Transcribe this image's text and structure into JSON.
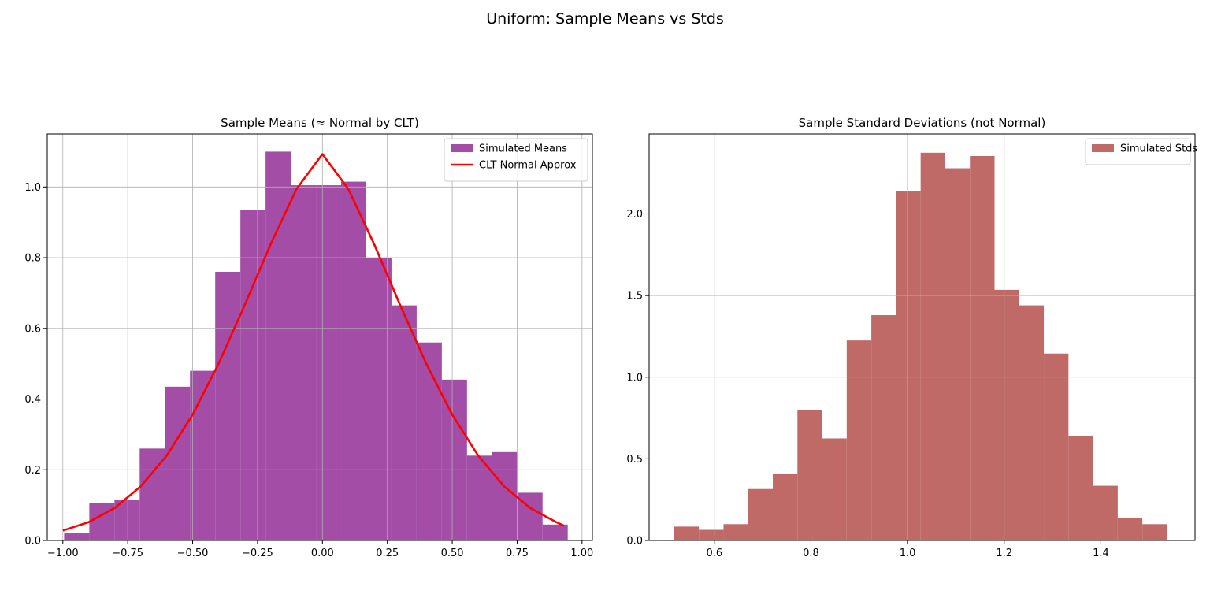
{
  "figure_title": "Uniform: Sample Means vs Stds",
  "chart_data": [
    {
      "type": "bar",
      "title": "Sample Means (≈ Normal by CLT)",
      "xlabel": "",
      "ylabel": "",
      "xlim": [
        -1.06,
        1.04
      ],
      "ylim": [
        0,
        1.15
      ],
      "xticks": [
        -1.0,
        -0.75,
        -0.5,
        -0.25,
        0.0,
        0.25,
        0.5,
        0.75,
        1.0
      ],
      "xtick_labels": [
        "−1.00",
        "−0.75",
        "−0.50",
        "−0.25",
        "0.00",
        "0.25",
        "0.50",
        "0.75",
        "1.00"
      ],
      "yticks": [
        0.0,
        0.2,
        0.4,
        0.6,
        0.8,
        1.0
      ],
      "ytick_labels": [
        "0.0",
        "0.2",
        "0.4",
        "0.6",
        "0.8",
        "1.0"
      ],
      "grid": true,
      "legend_position": "top-right",
      "series": [
        {
          "name": "Simulated Means",
          "kind": "histogram",
          "color": "#a34da6",
          "bin_edges": [
            -0.995,
            -0.898,
            -0.801,
            -0.704,
            -0.607,
            -0.51,
            -0.413,
            -0.316,
            -0.219,
            -0.122,
            -0.025,
            0.072,
            0.169,
            0.266,
            0.363,
            0.46,
            0.557,
            0.654,
            0.751,
            0.848,
            0.945
          ],
          "values": [
            0.02,
            0.105,
            0.115,
            0.26,
            0.435,
            0.48,
            0.76,
            0.935,
            1.1,
            1.005,
            1.005,
            1.015,
            0.8,
            0.665,
            0.56,
            0.455,
            0.24,
            0.25,
            0.135,
            0.045
          ]
        },
        {
          "name": "CLT Normal Approx",
          "kind": "line",
          "color": "#ff0000",
          "x": [
            -1.0,
            -0.9,
            -0.8,
            -0.7,
            -0.6,
            -0.5,
            -0.4,
            -0.3,
            -0.2,
            -0.1,
            0.0,
            0.1,
            0.2,
            0.3,
            0.4,
            0.5,
            0.6,
            0.7,
            0.8,
            0.9,
            0.93
          ],
          "y": [
            0.028,
            0.052,
            0.092,
            0.153,
            0.24,
            0.356,
            0.5,
            0.665,
            0.837,
            0.994,
            1.093,
            0.994,
            0.837,
            0.665,
            0.5,
            0.356,
            0.24,
            0.153,
            0.092,
            0.052,
            0.042
          ]
        }
      ]
    },
    {
      "type": "bar",
      "title": "Sample Standard Deviations (not Normal)",
      "xlabel": "",
      "ylabel": "",
      "xlim": [
        0.465,
        1.595
      ],
      "ylim": [
        0,
        2.49
      ],
      "xticks": [
        0.6,
        0.8,
        1.0,
        1.2,
        1.4
      ],
      "xtick_labels": [
        "0.6",
        "0.8",
        "1.0",
        "1.2",
        "1.4"
      ],
      "yticks": [
        0.0,
        0.5,
        1.0,
        1.5,
        2.0
      ],
      "ytick_labels": [
        "0.0",
        "0.5",
        "1.0",
        "1.5",
        "2.0"
      ],
      "grid": true,
      "legend_position": "top-right",
      "series": [
        {
          "name": "Simulated Stds",
          "kind": "histogram",
          "color": "#c06a68",
          "bin_edges": [
            0.517,
            0.568,
            0.619,
            0.67,
            0.721,
            0.772,
            0.823,
            0.874,
            0.925,
            0.976,
            1.027,
            1.078,
            1.129,
            1.18,
            1.231,
            1.282,
            1.333,
            1.384,
            1.435,
            1.486,
            1.537
          ],
          "values": [
            0.085,
            0.065,
            0.1,
            0.315,
            0.41,
            0.8,
            0.625,
            1.225,
            1.38,
            2.14,
            2.375,
            2.28,
            2.355,
            1.535,
            1.44,
            1.145,
            0.64,
            0.335,
            0.14,
            0.1
          ]
        }
      ]
    }
  ]
}
